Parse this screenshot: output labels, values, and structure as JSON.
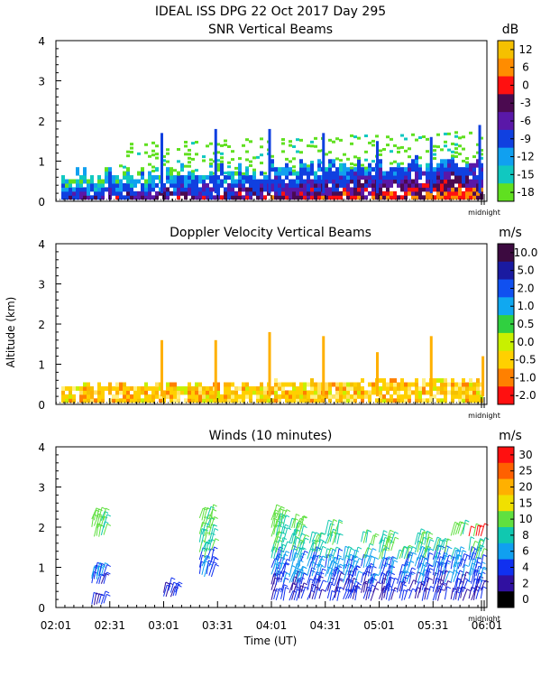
{
  "title": "IDEAL ISS DPG  22 Oct 2017 Day 295",
  "ylabel": "Altitude (km)",
  "xlabel": "Time (UT)",
  "chart_data": [
    {
      "type": "heatmap",
      "title": "SNR Vertical Beams",
      "units": "dB",
      "ylim": [
        0,
        4
      ],
      "yticks": [
        0,
        1,
        2,
        3,
        4
      ],
      "xlim_hours": [
        2.0167,
        6.0167
      ],
      "midnight_label": "midnight",
      "colorbar": {
        "labels": [
          "12",
          "6",
          "0",
          "-3",
          "-6",
          "-9",
          "-12",
          "-15",
          "-18"
        ],
        "colors": [
          "#f5c000",
          "#ff8c00",
          "#ff1010",
          "#4b0a50",
          "#5a18a8",
          "#1040e0",
          "#10a0f0",
          "#10c8c0",
          "#60e020"
        ]
      },
      "spikes": [
        {
          "hour": 3.0,
          "top_km": 1.7
        },
        {
          "hour": 3.5,
          "top_km": 1.8
        },
        {
          "hour": 4.0,
          "top_km": 1.8
        },
        {
          "hour": 4.5,
          "top_km": 1.7
        },
        {
          "hour": 5.0,
          "top_km": 1.5
        },
        {
          "hour": 5.5,
          "top_km": 1.6
        },
        {
          "hour": 5.95,
          "top_km": 1.9
        }
      ]
    },
    {
      "type": "heatmap",
      "title": "Doppler Velocity Vertical Beams",
      "units": "m/s",
      "ylim": [
        0,
        4
      ],
      "yticks": [
        0,
        1,
        2,
        3,
        4
      ],
      "xlim_hours": [
        2.0167,
        6.0167
      ],
      "midnight_label": "midnight",
      "colorbar": {
        "labels": [
          "10.0",
          "5.0",
          "2.0",
          "1.0",
          "0.5",
          "0.0",
          "-0.5",
          "-1.0",
          "-2.0"
        ],
        "colors": [
          "#3c0a40",
          "#1a1aa0",
          "#1050f0",
          "#10a8f0",
          "#30d040",
          "#c8f000",
          "#ffd000",
          "#ff8000",
          "#ff1010"
        ]
      },
      "spikes": [
        {
          "hour": 3.0,
          "top_km": 1.6
        },
        {
          "hour": 3.5,
          "top_km": 1.6
        },
        {
          "hour": 4.0,
          "top_km": 1.8
        },
        {
          "hour": 4.5,
          "top_km": 1.7
        },
        {
          "hour": 5.0,
          "top_km": 1.3
        },
        {
          "hour": 5.5,
          "top_km": 1.7
        },
        {
          "hour": 5.98,
          "top_km": 1.2
        }
      ]
    },
    {
      "type": "scatter",
      "title": "Winds (10 minutes)",
      "units": "m/s",
      "ylim": [
        0,
        4
      ],
      "yticks": [
        0,
        1,
        2,
        3,
        4
      ],
      "xlim_hours": [
        2.0167,
        6.0167
      ],
      "xtick_labels": [
        "02:01",
        "02:31",
        "03:01",
        "03:31",
        "04:01",
        "04:31",
        "05:01",
        "05:31",
        "06:01"
      ],
      "midnight_label": "midnight",
      "colorbar": {
        "labels": [
          "30",
          "25",
          "20",
          "15",
          "10",
          "8",
          "6",
          "4",
          "2",
          "0"
        ],
        "colors": [
          "#ff1010",
          "#ff6000",
          "#ffb000",
          "#f0e000",
          "#60e040",
          "#10c8b0",
          "#10a0f0",
          "#1030f0",
          "#3010a0",
          "#000000"
        ]
      },
      "profiles": [
        {
          "time": "02:21",
          "altitudes_km": [
            0.1,
            0.6,
            0.7,
            0.8,
            1.8,
            2.0,
            2.2
          ]
        },
        {
          "time": "03:01",
          "altitudes_km": [
            0.3,
            0.4
          ]
        },
        {
          "time": "03:21",
          "altitudes_km": [
            0.8,
            1.0,
            1.2,
            1.4,
            1.6,
            1.8,
            2.0,
            2.2
          ]
        },
        {
          "time": "04:01",
          "altitudes_km": [
            0.2,
            0.4,
            0.6,
            0.8,
            1.0,
            1.2,
            1.4,
            1.6,
            1.8,
            2.0,
            2.2
          ]
        },
        {
          "time": "04:11",
          "altitudes_km": [
            0.2,
            0.4,
            0.6,
            0.8,
            1.0,
            1.2,
            1.4,
            1.6,
            1.8,
            2.0
          ]
        },
        {
          "time": "04:21",
          "altitudes_km": [
            0.2,
            0.4,
            0.6,
            0.8,
            1.0,
            1.2,
            1.4,
            1.6
          ]
        },
        {
          "time": "04:31",
          "altitudes_km": [
            0.2,
            0.4,
            0.6,
            0.8,
            1.0,
            1.2,
            1.6,
            1.8
          ]
        },
        {
          "time": "04:41",
          "altitudes_km": [
            0.2,
            0.4,
            0.6,
            0.8,
            1.0,
            1.2
          ]
        },
        {
          "time": "04:51",
          "altitudes_km": [
            0.2,
            0.4,
            0.6,
            0.8,
            1.0,
            1.2,
            1.6
          ]
        },
        {
          "time": "05:01",
          "altitudes_km": [
            0.2,
            0.4,
            0.6,
            0.8,
            1.0,
            1.2,
            1.4,
            1.6
          ]
        },
        {
          "time": "05:11",
          "altitudes_km": [
            0.2,
            0.4,
            0.6,
            0.8,
            1.0,
            1.2
          ]
        },
        {
          "time": "05:21",
          "altitudes_km": [
            0.2,
            0.4,
            0.6,
            0.8,
            1.0,
            1.2,
            1.4,
            1.6
          ]
        },
        {
          "time": "05:31",
          "altitudes_km": [
            0.2,
            0.4,
            0.6,
            0.8,
            1.0,
            1.2,
            1.4
          ]
        },
        {
          "time": "05:41",
          "altitudes_km": [
            0.2,
            0.4,
            0.6,
            0.8,
            1.0,
            1.2,
            1.8
          ]
        },
        {
          "time": "05:51",
          "altitudes_km": [
            0.2,
            0.4,
            0.6,
            0.8,
            1.0,
            1.2,
            1.4,
            1.8
          ]
        }
      ]
    }
  ]
}
